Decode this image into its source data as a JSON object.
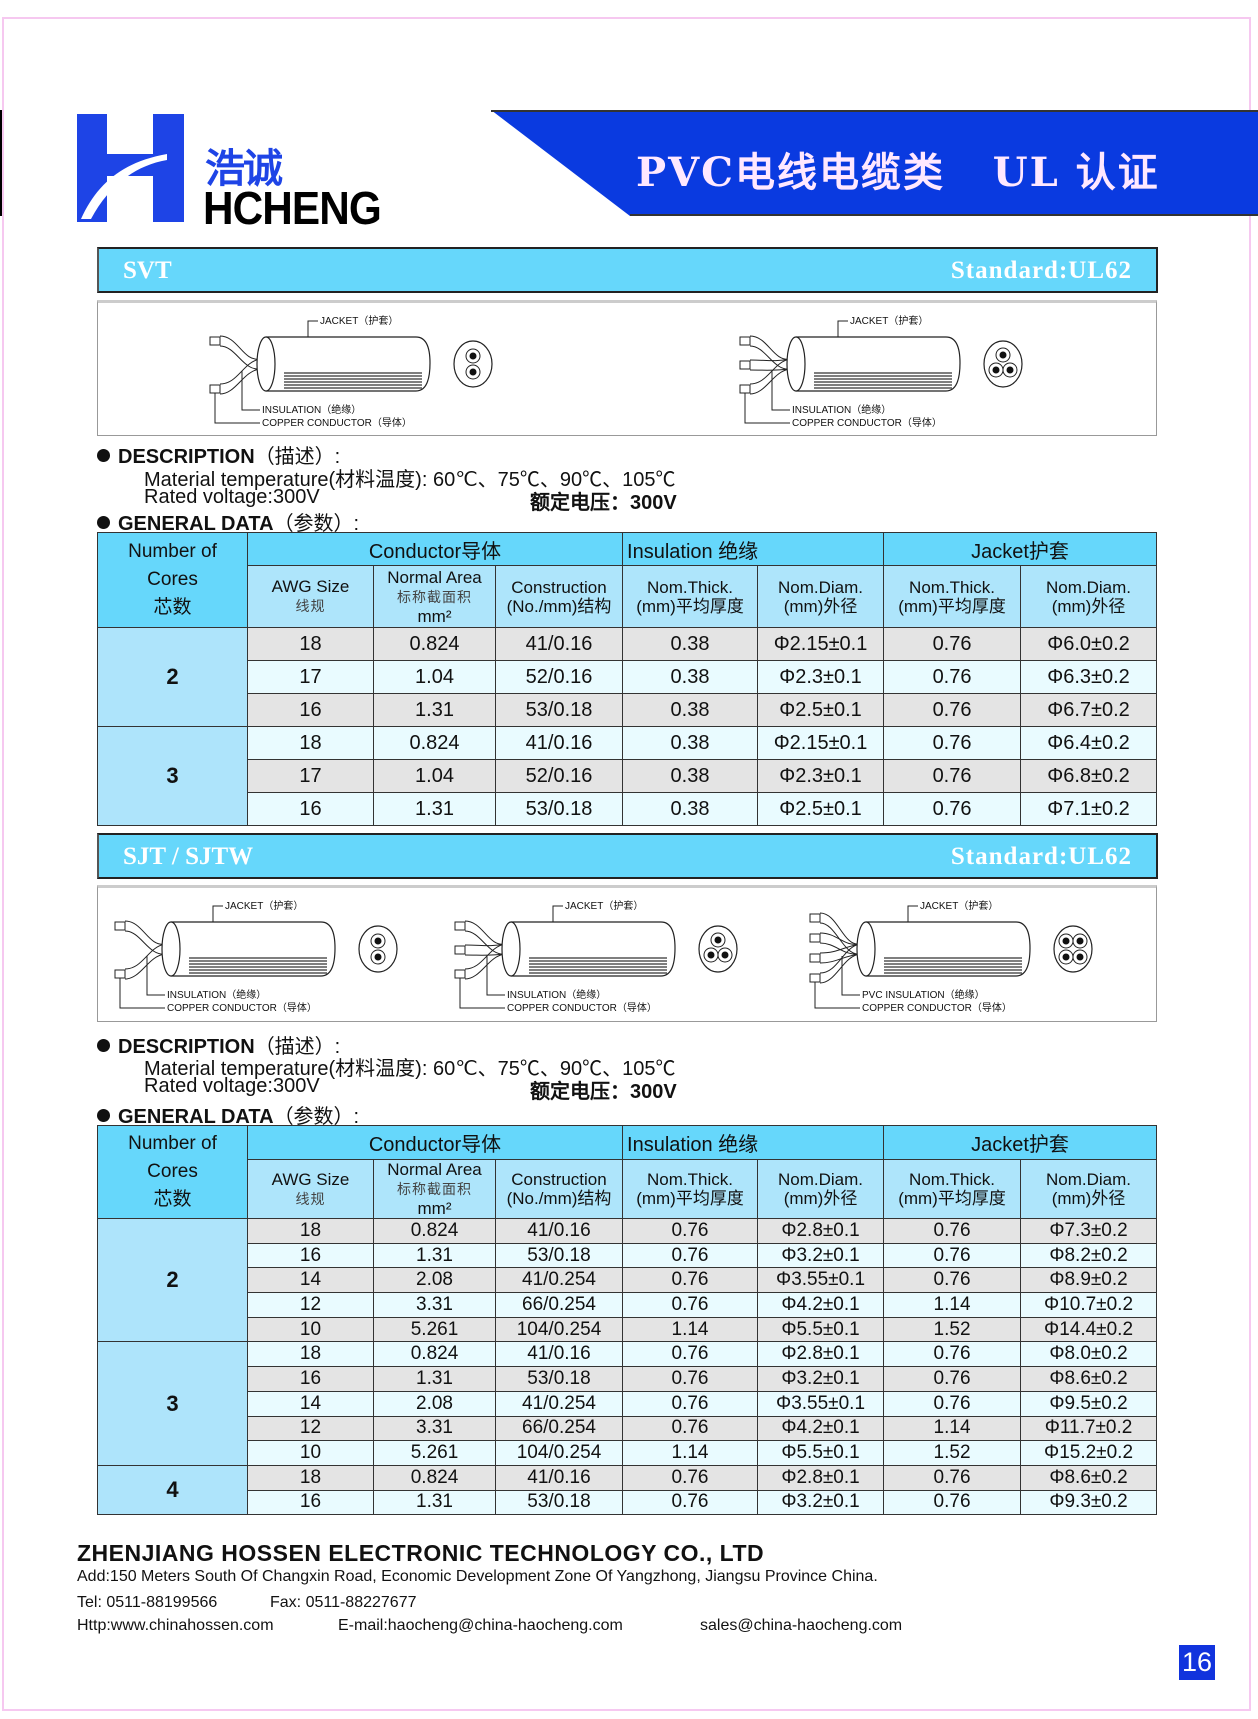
{
  "header": {
    "logo_cn": "浩诚",
    "logo_en": "HCHENG",
    "banner_title": "PVC电线电缆类   UL 认证",
    "brand_color": "#1e44e6",
    "banner_color": "#0a3ae0"
  },
  "sections": [
    {
      "name": "SVT",
      "standard": "Standard:UL62",
      "diagrams": [
        {
          "cores": 2,
          "jacket": "JACKET（护套）",
          "insulation": "INSULATION（绝缘）",
          "conductor": "COPPER CONDUCTOR（导体）"
        },
        {
          "cores": 3,
          "jacket": "JACKET（护套）",
          "insulation": "INSULATION（绝缘）",
          "conductor": "COPPER CONDUCTOR（导体）"
        }
      ],
      "description_label": "DESCRIPTION",
      "description_cn": "（描述）:",
      "material_temp": "Material temperature(材料温度): 60℃、75℃、90℃、105℃",
      "rated_voltage": "Rated voltage:300V",
      "rated_voltage_cn": "额定电压：300V",
      "general_label": "GENERAL DATA",
      "general_cn": "（参数）:",
      "groups": [
        {
          "cores": "2",
          "rows": [
            [
              "18",
              "0.824",
              "41/0.16",
              "0.38",
              "Φ2.15±0.1",
              "0.76",
              "Φ6.0±0.2"
            ],
            [
              "17",
              "1.04",
              "52/0.16",
              "0.38",
              "Φ2.3±0.1",
              "0.76",
              "Φ6.3±0.2"
            ],
            [
              "16",
              "1.31",
              "53/0.18",
              "0.38",
              "Φ2.5±0.1",
              "0.76",
              "Φ6.7±0.2"
            ]
          ]
        },
        {
          "cores": "3",
          "rows": [
            [
              "18",
              "0.824",
              "41/0.16",
              "0.38",
              "Φ2.15±0.1",
              "0.76",
              "Φ6.4±0.2"
            ],
            [
              "17",
              "1.04",
              "52/0.16",
              "0.38",
              "Φ2.3±0.1",
              "0.76",
              "Φ6.8±0.2"
            ],
            [
              "16",
              "1.31",
              "53/0.18",
              "0.38",
              "Φ2.5±0.1",
              "0.76",
              "Φ7.1±0.2"
            ]
          ]
        }
      ]
    },
    {
      "name": "SJT / SJTW",
      "standard": "Standard:UL62",
      "diagrams": [
        {
          "cores": 2,
          "jacket": "JACKET（护套）",
          "insulation": "INSULATION（绝缘）",
          "conductor": "COPPER CONDUCTOR（导体）"
        },
        {
          "cores": 3,
          "jacket": "JACKET（护套）",
          "insulation": "INSULATION（绝缘）",
          "conductor": "COPPER CONDUCTOR（导体）"
        },
        {
          "cores": 4,
          "jacket": "JACKET（护套）",
          "insulation": "PVC INSULATION（绝缘）",
          "conductor": "COPPER CONDUCTOR（导体）"
        }
      ],
      "description_label": "DESCRIPTION",
      "description_cn": "（描述）:",
      "material_temp": "Material temperature(材料温度): 60℃、75℃、90℃、105℃",
      "rated_voltage": "Rated voltage:300V",
      "rated_voltage_cn": "额定电压：300V",
      "general_label": "GENERAL DATA",
      "general_cn": "（参数）:",
      "groups": [
        {
          "cores": "2",
          "rows": [
            [
              "18",
              "0.824",
              "41/0.16",
              "0.76",
              "Φ2.8±0.1",
              "0.76",
              "Φ7.3±0.2"
            ],
            [
              "16",
              "1.31",
              "53/0.18",
              "0.76",
              "Φ3.2±0.1",
              "0.76",
              "Φ8.2±0.2"
            ],
            [
              "14",
              "2.08",
              "41/0.254",
              "0.76",
              "Φ3.55±0.1",
              "0.76",
              "Φ8.9±0.2"
            ],
            [
              "12",
              "3.31",
              "66/0.254",
              "0.76",
              "Φ4.2±0.1",
              "1.14",
              "Φ10.7±0.2"
            ],
            [
              "10",
              "5.261",
              "104/0.254",
              "1.14",
              "Φ5.5±0.1",
              "1.52",
              "Φ14.4±0.2"
            ]
          ]
        },
        {
          "cores": "3",
          "rows": [
            [
              "18",
              "0.824",
              "41/0.16",
              "0.76",
              "Φ2.8±0.1",
              "0.76",
              "Φ8.0±0.2"
            ],
            [
              "16",
              "1.31",
              "53/0.18",
              "0.76",
              "Φ3.2±0.1",
              "0.76",
              "Φ8.6±0.2"
            ],
            [
              "14",
              "2.08",
              "41/0.254",
              "0.76",
              "Φ3.55±0.1",
              "0.76",
              "Φ9.5±0.2"
            ],
            [
              "12",
              "3.31",
              "66/0.254",
              "0.76",
              "Φ4.2±0.1",
              "1.14",
              "Φ11.7±0.2"
            ],
            [
              "10",
              "5.261",
              "104/0.254",
              "1.14",
              "Φ5.5±0.1",
              "1.52",
              "Φ15.2±0.2"
            ]
          ]
        },
        {
          "cores": "4",
          "rows": [
            [
              "18",
              "0.824",
              "41/0.16",
              "0.76",
              "Φ2.8±0.1",
              "0.76",
              "Φ8.6±0.2"
            ],
            [
              "16",
              "1.31",
              "53/0.18",
              "0.76",
              "Φ3.2±0.1",
              "0.76",
              "Φ9.3±0.2"
            ]
          ]
        }
      ]
    }
  ],
  "table_header": {
    "cores": [
      "Number of",
      "Cores",
      "芯数"
    ],
    "conductor": "Conductor导体",
    "insulation": "Insulation 绝缘",
    "jacket": "Jacket护套",
    "awg": [
      "AWG Size",
      "线规"
    ],
    "area": [
      "Normal Area",
      "标称截面积",
      "mm²"
    ],
    "construction": [
      "Construction",
      "(No./mm)结构"
    ],
    "ins_thick": [
      "Nom.Thick.",
      "(mm)平均厚度"
    ],
    "ins_diam": [
      "Nom.Diam.",
      "(mm)外径"
    ],
    "jac_thick": [
      "Nom.Thick.",
      "(mm)平均厚度"
    ],
    "jac_diam": [
      "Nom.Diam.",
      "(mm)外径"
    ]
  },
  "footer": {
    "company": "ZHENJIANG HOSSEN ELECTRONIC TECHNOLOGY CO., LTD",
    "address": "Add:150 Meters South Of Changxin Road, Economic Development Zone Of Yangzhong, Jiangsu Province China.",
    "tel": "Tel: 0511-88199566",
    "fax": "Fax: 0511-88227677",
    "web": "Http:www.chinahossen.com",
    "email": "E-mail:haocheng@china-haocheng.com",
    "sales": "sales@china-haocheng.com",
    "page": "16"
  }
}
